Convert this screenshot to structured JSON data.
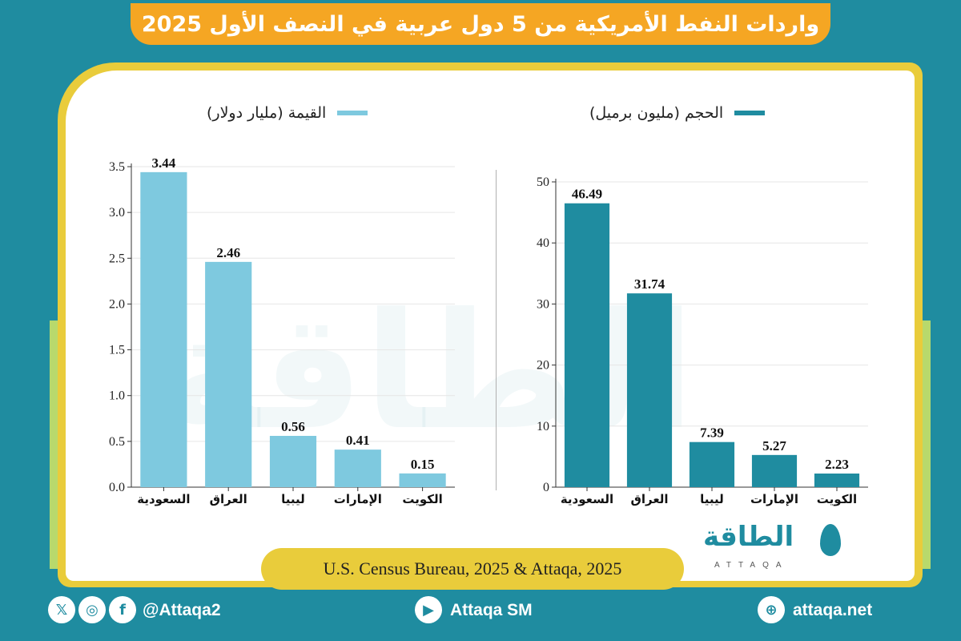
{
  "title": "واردات النفط الأمريكية من 5 دول عربية في النصف الأول 2025",
  "colors": {
    "value": "#7ec9df",
    "volume": "#1f8ca0",
    "accent": "#f5a623",
    "frame": "#e9cc3b",
    "background": "#1f8ca0"
  },
  "source": "U.S. Census Bureau, 2025 & Attaqa, 2025",
  "logo": {
    "arabic": "الطاقة",
    "english": "ATTAQA"
  },
  "watermark": "الطاقة",
  "footer": {
    "social_handle": "@Attaqa2",
    "youtube": "Attaqa SM",
    "website": "attaqa.net"
  },
  "chart_data": [
    {
      "type": "bar",
      "title": "",
      "legend": "القيمة (مليار دولار)",
      "legend_position": "top-right",
      "categories": [
        "السعودية",
        "العراق",
        "ليبيا",
        "الإمارات",
        "الكويت"
      ],
      "values": [
        3.44,
        2.46,
        0.56,
        0.41,
        0.15
      ],
      "value_labels": [
        "3.44",
        "2.46",
        "0.56",
        "0.41",
        "0.15"
      ],
      "ylim": [
        0,
        3.5
      ],
      "yticks": [
        "0.0",
        "0.5",
        "1.0",
        "1.5",
        "2.0",
        "2.5",
        "3.0",
        "3.5"
      ],
      "grid": true,
      "xlabel": "",
      "ylabel": ""
    },
    {
      "type": "bar",
      "title": "",
      "legend": "الحجم (مليون برميل)",
      "legend_position": "top-right",
      "categories": [
        "السعودية",
        "العراق",
        "ليبيا",
        "الإمارات",
        "الكويت"
      ],
      "values": [
        46.49,
        31.74,
        7.39,
        5.27,
        2.23
      ],
      "value_labels": [
        "46.49",
        "31.74",
        "7.39",
        "5.27",
        "2.23"
      ],
      "ylim": [
        0,
        50
      ],
      "yticks": [
        "0",
        "10",
        "20",
        "30",
        "40",
        "50"
      ],
      "grid": true,
      "xlabel": "",
      "ylabel": ""
    }
  ]
}
